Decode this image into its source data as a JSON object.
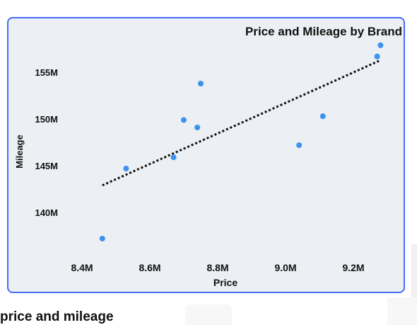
{
  "chart_data": {
    "type": "scatter",
    "title": "Price and Mileage by Brand",
    "xlabel": "Price",
    "ylabel": "Mileage",
    "xlim": [
      8.35,
      9.35
    ],
    "ylim": [
      135.0,
      158.5
    ],
    "xticks": [
      8.4,
      8.6,
      8.8,
      9.0,
      9.2
    ],
    "xtick_labels": [
      "8.4M",
      "8.6M",
      "8.8M",
      "9.0M",
      "9.2M"
    ],
    "yticks": [
      140,
      145,
      150,
      155
    ],
    "ytick_labels": [
      "140M",
      "145M",
      "150M",
      "155M"
    ],
    "grid": false,
    "points": [
      {
        "x": 8.46,
        "y": 137.2
      },
      {
        "x": 8.53,
        "y": 144.7
      },
      {
        "x": 8.67,
        "y": 145.9
      },
      {
        "x": 8.7,
        "y": 149.9
      },
      {
        "x": 8.74,
        "y": 149.1
      },
      {
        "x": 8.75,
        "y": 153.8
      },
      {
        "x": 9.04,
        "y": 147.2
      },
      {
        "x": 9.11,
        "y": 150.3
      },
      {
        "x": 9.27,
        "y": 156.7
      },
      {
        "x": 9.28,
        "y": 157.9
      }
    ],
    "trendline": {
      "x": [
        8.46,
        9.28
      ],
      "y": [
        142.9,
        156.3
      ],
      "style": "dotted"
    },
    "point_color": "#3b93ee",
    "trend_color": "#111111"
  },
  "caption": "price and mileage"
}
